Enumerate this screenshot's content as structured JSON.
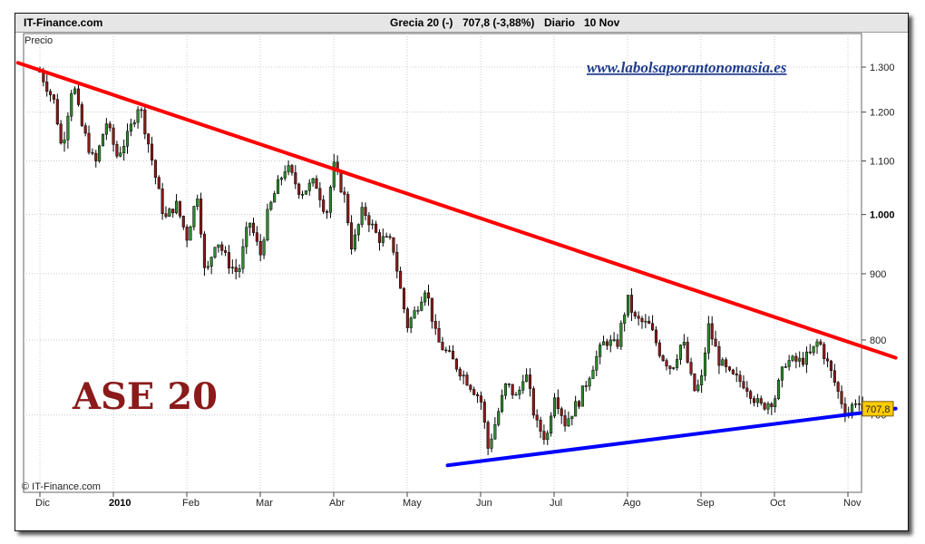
{
  "header": {
    "brand": "IT-Finance.com",
    "symbol": "Grecia 20 (-)",
    "value": "707,8 (-3,88%)",
    "period": "Diario",
    "date": "10 Nov"
  },
  "chart_data": {
    "type": "candlestick",
    "ylabel": "Precio",
    "watermark": "www.labolsaporantonomasia.es",
    "annotation": "ASE 20",
    "copyright": "© IT-Finance.com",
    "last_value_label": "707,8",
    "ylim": [
      610,
      1380
    ],
    "y_ticks": [
      {
        "value": 1300,
        "label": "1.300"
      },
      {
        "value": 1200,
        "label": "1.200"
      },
      {
        "value": 1100,
        "label": "1.100"
      },
      {
        "value": 1000,
        "label": "1.000"
      },
      {
        "value": 900,
        "label": "900"
      },
      {
        "value": 800,
        "label": "800"
      },
      {
        "value": 700,
        "label": "700"
      }
    ],
    "x_ticks": [
      {
        "label": "Dic",
        "month_index": 0
      },
      {
        "label": "2010",
        "month_index": 1
      },
      {
        "label": "Feb",
        "month_index": 2
      },
      {
        "label": "Mar",
        "month_index": 3
      },
      {
        "label": "Abr",
        "month_index": 4
      },
      {
        "label": "May",
        "month_index": 5
      },
      {
        "label": "Jun",
        "month_index": 6
      },
      {
        "label": "Jul",
        "month_index": 7
      },
      {
        "label": "Ago",
        "month_index": 8
      },
      {
        "label": "Sep",
        "month_index": 9
      },
      {
        "label": "Oct",
        "month_index": 10
      },
      {
        "label": "Nov",
        "month_index": 11
      }
    ],
    "price_path": [
      [
        0.0,
        1290
      ],
      [
        0.2,
        1220
      ],
      [
        0.3,
        1120
      ],
      [
        0.45,
        1270
      ],
      [
        0.55,
        1180
      ],
      [
        0.75,
        1090
      ],
      [
        0.9,
        1180
      ],
      [
        1.05,
        1110
      ],
      [
        1.2,
        1150
      ],
      [
        1.35,
        1220
      ],
      [
        1.5,
        1120
      ],
      [
        1.6,
        1050
      ],
      [
        1.7,
        990
      ],
      [
        1.85,
        1020
      ],
      [
        2.0,
        960
      ],
      [
        2.15,
        1040
      ],
      [
        2.25,
        890
      ],
      [
        2.4,
        960
      ],
      [
        2.55,
        920
      ],
      [
        2.7,
        900
      ],
      [
        2.85,
        990
      ],
      [
        3.0,
        930
      ],
      [
        3.1,
        1000
      ],
      [
        3.2,
        1040
      ],
      [
        3.35,
        1090
      ],
      [
        3.55,
        1040
      ],
      [
        3.75,
        1060
      ],
      [
        3.9,
        1000
      ],
      [
        4.0,
        1090
      ],
      [
        4.15,
        1030
      ],
      [
        4.25,
        940
      ],
      [
        4.4,
        1010
      ],
      [
        4.6,
        960
      ],
      [
        4.8,
        950
      ],
      [
        4.9,
        880
      ],
      [
        5.0,
        820
      ],
      [
        5.1,
        840
      ],
      [
        5.25,
        880
      ],
      [
        5.4,
        800
      ],
      [
        5.55,
        780
      ],
      [
        5.7,
        760
      ],
      [
        5.85,
        740
      ],
      [
        6.0,
        720
      ],
      [
        6.1,
        660
      ],
      [
        6.2,
        690
      ],
      [
        6.35,
        740
      ],
      [
        6.5,
        720
      ],
      [
        6.6,
        760
      ],
      [
        6.75,
        690
      ],
      [
        6.9,
        670
      ],
      [
        7.0,
        730
      ],
      [
        7.15,
        690
      ],
      [
        7.35,
        720
      ],
      [
        7.55,
        770
      ],
      [
        7.7,
        800
      ],
      [
        7.85,
        790
      ],
      [
        8.0,
        860
      ],
      [
        8.1,
        830
      ],
      [
        8.3,
        820
      ],
      [
        8.45,
        780
      ],
      [
        8.6,
        760
      ],
      [
        8.75,
        800
      ],
      [
        8.9,
        730
      ],
      [
        9.0,
        740
      ],
      [
        9.1,
        820
      ],
      [
        9.25,
        770
      ],
      [
        9.4,
        750
      ],
      [
        9.6,
        740
      ],
      [
        9.8,
        710
      ],
      [
        10.0,
        720
      ],
      [
        10.15,
        770
      ],
      [
        10.35,
        770
      ],
      [
        10.5,
        780
      ],
      [
        10.6,
        800
      ],
      [
        10.75,
        760
      ],
      [
        10.9,
        720
      ],
      [
        11.0,
        700
      ],
      [
        11.1,
        720
      ],
      [
        11.2,
        707.8
      ]
    ],
    "series": [
      {
        "kind": "trendline",
        "color": "#ff0000",
        "points": [
          [
            -0.3,
            1310
          ],
          [
            11.65,
            775
          ]
        ]
      },
      {
        "kind": "trendline",
        "color": "#0000ff",
        "points": [
          [
            5.55,
            640
          ],
          [
            11.65,
            708
          ]
        ]
      }
    ],
    "grid": true,
    "candle_up_color": "#2e8b2e",
    "candle_down_color": "#8b1a1a"
  }
}
